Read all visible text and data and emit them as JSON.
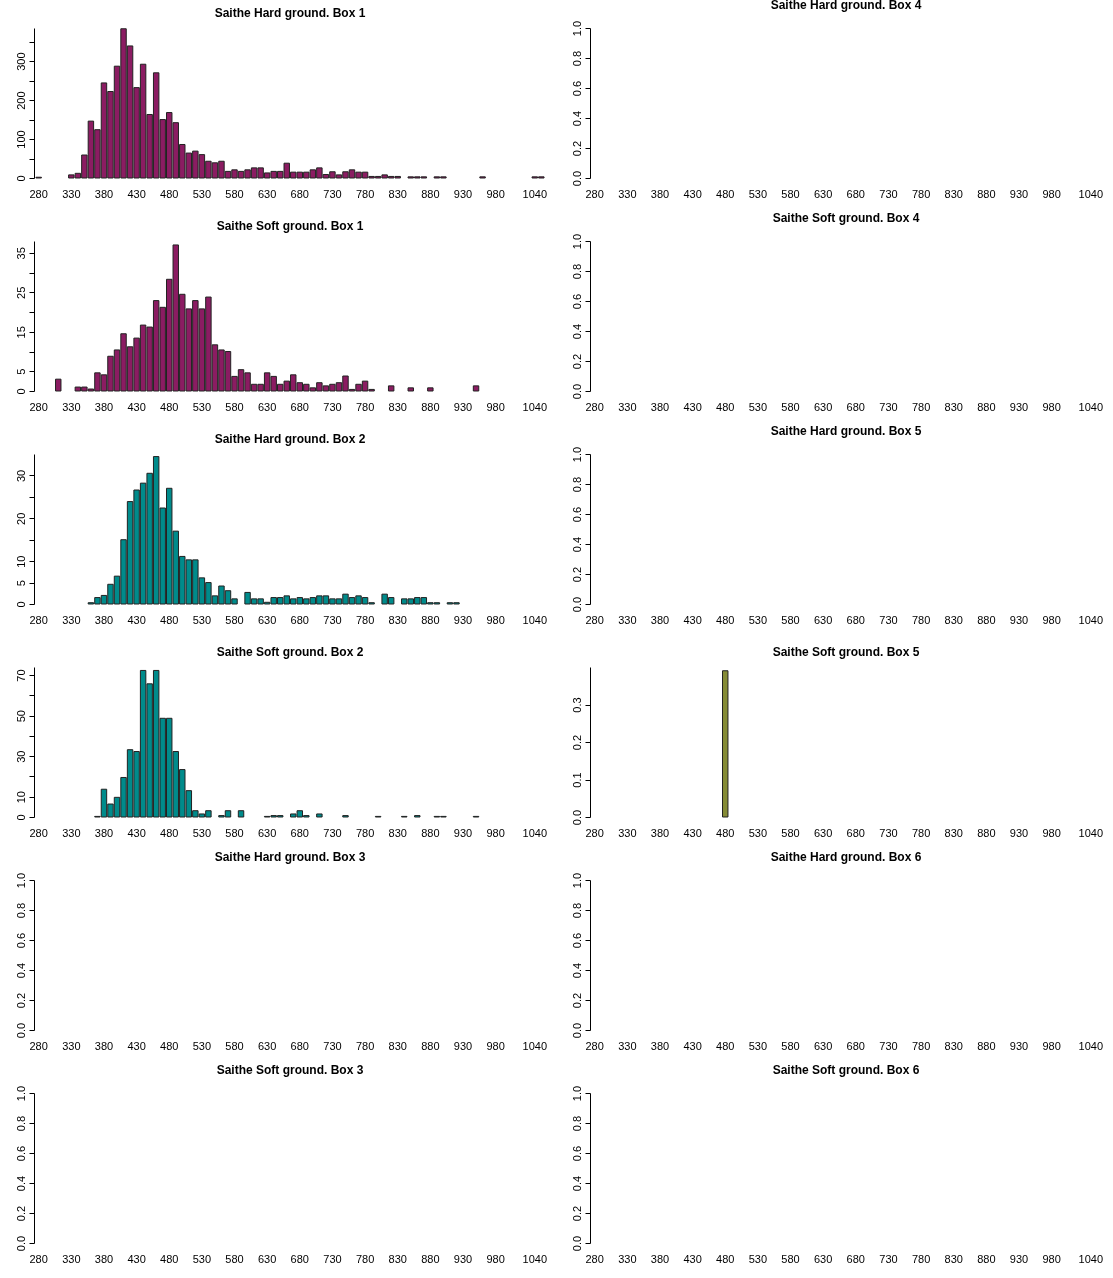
{
  "chart_data": [
    {
      "type": "bar",
      "title": "Saithe Hard ground. Box 1",
      "color": "#8b1c62",
      "categories": [
        "280",
        null,
        null,
        null,
        null,
        "330",
        null,
        null,
        null,
        null,
        "380",
        null,
        null,
        null,
        null,
        "430",
        null,
        null,
        null,
        null,
        "480",
        null,
        null,
        null,
        null,
        "530",
        null,
        null,
        null,
        null,
        "580",
        null,
        null,
        null,
        null,
        "630",
        null,
        null,
        null,
        null,
        "680",
        null,
        null,
        null,
        null,
        "730",
        null,
        null,
        null,
        null,
        "780",
        null,
        null,
        null,
        null,
        "830",
        null,
        null,
        null,
        null,
        "880",
        null,
        null,
        null,
        null,
        "930",
        null,
        null,
        null,
        null,
        "980",
        null,
        null,
        null,
        null,
        null,
        "1040",
        null
      ],
      "values": [
        2,
        null,
        null,
        null,
        null,
        8,
        12,
        59,
        146,
        124,
        244,
        222,
        287,
        383,
        339,
        232,
        292,
        163,
        270,
        150,
        168,
        142,
        86,
        64,
        69,
        60,
        43,
        39,
        43,
        17,
        21,
        17,
        21,
        26,
        26,
        13,
        17,
        17,
        38,
        15,
        15,
        15,
        21,
        26,
        9,
        16,
        8,
        16,
        21,
        15,
        15,
        4,
        4,
        8,
        4,
        4,
        null,
        3,
        3,
        3,
        null,
        3,
        3,
        null,
        null,
        null,
        null,
        null,
        3,
        null,
        null,
        null,
        null,
        null,
        null,
        null,
        3,
        3
      ],
      "ylim": [
        0,
        385
      ],
      "yticks": [
        0,
        {
          "value": 50,
          "label": null
        },
        100,
        {
          "value": 150,
          "label": null
        },
        200,
        {
          "value": 250,
          "label": null
        },
        300,
        {
          "value": 350,
          "label": null
        }
      ]
    },
    {
      "type": "bar",
      "title": "Saithe Hard ground. Box 4",
      "categories": [
        "280",
        null,
        null,
        null,
        null,
        "330",
        null,
        null,
        null,
        null,
        "380",
        null,
        null,
        null,
        null,
        "430",
        null,
        null,
        null,
        null,
        "480",
        null,
        null,
        null,
        null,
        "530",
        null,
        null,
        null,
        null,
        "580",
        null,
        null,
        null,
        null,
        "630",
        null,
        null,
        null,
        null,
        "680",
        null,
        null,
        null,
        null,
        "730",
        null,
        null,
        null,
        null,
        "780",
        null,
        null,
        null,
        null,
        "830",
        null,
        null,
        null,
        null,
        "880",
        null,
        null,
        null,
        null,
        "930",
        null,
        null,
        null,
        null,
        "980",
        null,
        null,
        null,
        null,
        null,
        "1040",
        null
      ],
      "values": [
        null,
        null,
        null,
        null,
        null,
        null,
        null,
        null,
        null,
        null,
        null,
        null,
        null,
        null,
        null,
        null,
        null,
        null,
        null,
        null,
        null,
        null,
        null,
        null,
        null,
        null,
        null,
        null,
        null,
        null,
        null,
        null,
        null,
        null,
        null,
        null,
        null,
        null,
        null,
        null,
        null,
        null,
        null,
        null,
        null,
        null,
        null,
        null,
        null,
        null,
        null,
        null,
        null,
        null,
        null,
        null,
        null,
        null,
        null,
        null,
        null,
        null,
        null,
        null,
        null,
        null,
        null,
        null,
        null,
        null,
        null,
        null,
        null,
        null,
        null,
        null,
        null,
        null
      ],
      "ylim": [
        0,
        1
      ],
      "yticks": [
        {
          "value": 0,
          "label": "0.0"
        },
        0.2,
        0.4,
        0.6,
        0.8,
        {
          "value": 1,
          "label": "1.0"
        }
      ]
    },
    {
      "type": "bar",
      "title": "Saithe Soft ground. Box 1",
      "color": "#8b1c62",
      "categories": [
        "280",
        null,
        null,
        null,
        null,
        "330",
        null,
        null,
        null,
        null,
        "380",
        null,
        null,
        null,
        null,
        "430",
        null,
        null,
        null,
        null,
        "480",
        null,
        null,
        null,
        null,
        "530",
        null,
        null,
        null,
        null,
        "580",
        null,
        null,
        null,
        null,
        "630",
        null,
        null,
        null,
        null,
        "680",
        null,
        null,
        null,
        null,
        "730",
        null,
        null,
        null,
        null,
        "780",
        null,
        null,
        null,
        null,
        "830",
        null,
        null,
        null,
        null,
        "880",
        null,
        null,
        null,
        null,
        "930",
        null,
        null,
        null,
        null,
        "980",
        null,
        null,
        null,
        null,
        null,
        "1040",
        null
      ],
      "values": [
        null,
        null,
        null,
        3,
        null,
        null,
        1,
        1,
        0.5,
        4.6,
        4.1,
        8.8,
        10.4,
        14.5,
        11.2,
        13.4,
        16.7,
        16.2,
        22.9,
        21.2,
        28.3,
        37,
        24.5,
        20.8,
        22.9,
        20.8,
        23.8,
        11.7,
        10.4,
        10,
        3.7,
        5.4,
        4.6,
        1.7,
        1.7,
        4.6,
        3.7,
        1.7,
        2.5,
        4.1,
        2.1,
        1.7,
        0.8,
        2.1,
        1.3,
        1.7,
        2.1,
        3.8,
        0.4,
        1.7,
        2.5,
        0.4,
        null,
        null,
        1.3,
        null,
        null,
        0.8,
        null,
        null,
        0.8,
        null,
        null,
        null,
        null,
        null,
        null,
        1.3,
        null,
        null,
        null,
        null,
        null,
        null,
        null,
        null,
        null,
        null
      ],
      "ylim": [
        0,
        38
      ],
      "yticks": [
        0,
        5,
        {
          "value": 10,
          "label": null
        },
        15,
        {
          "value": 20,
          "label": null
        },
        25,
        {
          "value": 30,
          "label": null
        },
        35
      ]
    },
    {
      "type": "bar",
      "title": "Saithe Soft ground. Box 4",
      "categories": [
        "280",
        null,
        null,
        null,
        null,
        "330",
        null,
        null,
        null,
        null,
        "380",
        null,
        null,
        null,
        null,
        "430",
        null,
        null,
        null,
        null,
        "480",
        null,
        null,
        null,
        null,
        "530",
        null,
        null,
        null,
        null,
        "580",
        null,
        null,
        null,
        null,
        "630",
        null,
        null,
        null,
        null,
        "680",
        null,
        null,
        null,
        null,
        "730",
        null,
        null,
        null,
        null,
        "780",
        null,
        null,
        null,
        null,
        "830",
        null,
        null,
        null,
        null,
        "880",
        null,
        null,
        null,
        null,
        "930",
        null,
        null,
        null,
        null,
        "980",
        null,
        null,
        null,
        null,
        null,
        "1040",
        null
      ],
      "values": [
        null,
        null,
        null,
        null,
        null,
        null,
        null,
        null,
        null,
        null,
        null,
        null,
        null,
        null,
        null,
        null,
        null,
        null,
        null,
        null,
        null,
        null,
        null,
        null,
        null,
        null,
        null,
        null,
        null,
        null,
        null,
        null,
        null,
        null,
        null,
        null,
        null,
        null,
        null,
        null,
        null,
        null,
        null,
        null,
        null,
        null,
        null,
        null,
        null,
        null,
        null,
        null,
        null,
        null,
        null,
        null,
        null,
        null,
        null,
        null,
        null,
        null,
        null,
        null,
        null,
        null,
        null,
        null,
        null,
        null,
        null,
        null,
        null,
        null,
        null,
        null,
        null,
        null
      ],
      "ylim": [
        0,
        1
      ],
      "yticks": [
        {
          "value": 0,
          "label": "0.0"
        },
        0.2,
        0.4,
        0.6,
        0.8,
        {
          "value": 1,
          "label": "1.0"
        }
      ]
    },
    {
      "type": "bar",
      "title": "Saithe Hard ground. Box 2",
      "color": "#008b8b",
      "categories": [
        "280",
        null,
        null,
        null,
        null,
        "330",
        null,
        null,
        null,
        null,
        "380",
        null,
        null,
        null,
        null,
        "430",
        null,
        null,
        null,
        null,
        "480",
        null,
        null,
        null,
        null,
        "530",
        null,
        null,
        null,
        null,
        "580",
        null,
        null,
        null,
        null,
        "630",
        null,
        null,
        null,
        null,
        "680",
        null,
        null,
        null,
        null,
        "730",
        null,
        null,
        null,
        null,
        "780",
        null,
        null,
        null,
        null,
        "830",
        null,
        null,
        null,
        null,
        "880",
        null,
        null,
        null,
        null,
        "930",
        null,
        null,
        null,
        null,
        "980",
        null,
        null,
        null,
        null,
        null,
        "1040",
        null
      ],
      "values": [
        null,
        null,
        null,
        null,
        null,
        null,
        null,
        null,
        0.3,
        1.5,
        2,
        4.6,
        6.5,
        15,
        23.9,
        26.6,
        28.2,
        30.5,
        34.4,
        22.4,
        27,
        17,
        11.1,
        10.3,
        10.3,
        6.1,
        5,
        1.9,
        4.2,
        3.1,
        1.2,
        null,
        2.7,
        1.2,
        1.2,
        0.4,
        1.5,
        1.5,
        1.9,
        1.2,
        1.5,
        1.2,
        1.5,
        1.9,
        1.9,
        1.2,
        1.2,
        2.3,
        1.5,
        1.9,
        1.5,
        0.3,
        null,
        2.3,
        1.5,
        null,
        1.2,
        1.2,
        1.5,
        1.5,
        0.3,
        0.3,
        null,
        0.3,
        0.3,
        null,
        null,
        null,
        null,
        null,
        null,
        null,
        null,
        null,
        null,
        null,
        null,
        null
      ],
      "ylim": [
        0,
        35
      ],
      "yticks": [
        0,
        5,
        10,
        {
          "value": 15,
          "label": null
        },
        20,
        {
          "value": 25,
          "label": null
        },
        30
      ]
    },
    {
      "type": "bar",
      "title": "Saithe Hard ground. Box 5",
      "categories": [
        "280",
        null,
        null,
        null,
        null,
        "330",
        null,
        null,
        null,
        null,
        "380",
        null,
        null,
        null,
        null,
        "430",
        null,
        null,
        null,
        null,
        "480",
        null,
        null,
        null,
        null,
        "530",
        null,
        null,
        null,
        null,
        "580",
        null,
        null,
        null,
        null,
        "630",
        null,
        null,
        null,
        null,
        "680",
        null,
        null,
        null,
        null,
        "730",
        null,
        null,
        null,
        null,
        "780",
        null,
        null,
        null,
        null,
        "830",
        null,
        null,
        null,
        null,
        "880",
        null,
        null,
        null,
        null,
        "930",
        null,
        null,
        null,
        null,
        "980",
        null,
        null,
        null,
        null,
        null,
        "1040",
        null
      ],
      "values": [
        null,
        null,
        null,
        null,
        null,
        null,
        null,
        null,
        null,
        null,
        null,
        null,
        null,
        null,
        null,
        null,
        null,
        null,
        null,
        null,
        null,
        null,
        null,
        null,
        null,
        null,
        null,
        null,
        null,
        null,
        null,
        null,
        null,
        null,
        null,
        null,
        null,
        null,
        null,
        null,
        null,
        null,
        null,
        null,
        null,
        null,
        null,
        null,
        null,
        null,
        null,
        null,
        null,
        null,
        null,
        null,
        null,
        null,
        null,
        null,
        null,
        null,
        null,
        null,
        null,
        null,
        null,
        null,
        null,
        null,
        null,
        null,
        null,
        null,
        null,
        null,
        null,
        null
      ],
      "ylim": [
        0,
        1
      ],
      "yticks": [
        {
          "value": 0,
          "label": "0.0"
        },
        0.2,
        0.4,
        0.6,
        0.8,
        {
          "value": 1,
          "label": "1.0"
        }
      ]
    },
    {
      "type": "bar",
      "title": "Saithe Soft ground. Box 2",
      "color": "#008b8b",
      "categories": [
        "280",
        null,
        null,
        null,
        null,
        "330",
        null,
        null,
        null,
        null,
        "380",
        null,
        null,
        null,
        null,
        "430",
        null,
        null,
        null,
        null,
        "480",
        null,
        null,
        null,
        null,
        "530",
        null,
        null,
        null,
        null,
        "580",
        null,
        null,
        null,
        null,
        "630",
        null,
        null,
        null,
        null,
        "680",
        null,
        null,
        null,
        null,
        "730",
        null,
        null,
        null,
        null,
        "780",
        null,
        null,
        null,
        null,
        "830",
        null,
        null,
        null,
        null,
        "880",
        null,
        null,
        null,
        null,
        "930",
        null,
        null,
        null,
        null,
        "980",
        null,
        null,
        null,
        null,
        null,
        "1040",
        null
      ],
      "values": [
        null,
        null,
        null,
        null,
        null,
        null,
        null,
        null,
        null,
        0.3,
        13.7,
        6.4,
        9.7,
        19.5,
        33.2,
        32.3,
        72.3,
        65.7,
        72.3,
        48.7,
        48.7,
        32.3,
        23.4,
        13,
        3.1,
        1.5,
        3.1,
        null,
        0.7,
        3.1,
        null,
        3.1,
        null,
        null,
        null,
        0.3,
        0.7,
        0.7,
        null,
        1.5,
        3.1,
        0.7,
        null,
        1.5,
        null,
        null,
        null,
        0.7,
        null,
        null,
        null,
        null,
        0.3,
        null,
        null,
        null,
        0.3,
        null,
        0.7,
        null,
        null,
        0.3,
        0.3,
        null,
        null,
        null,
        null,
        0.3,
        null,
        null,
        null,
        null,
        null,
        null,
        null,
        null,
        null,
        null
      ],
      "ylim": [
        0,
        74
      ],
      "yticks": [
        0,
        10,
        {
          "value": 20,
          "label": null
        },
        30,
        {
          "value": 40,
          "label": null
        },
        50,
        {
          "value": 60,
          "label": null
        },
        70
      ]
    },
    {
      "type": "bar",
      "title": "Saithe Soft ground. Box 5",
      "color": "#858b35",
      "categories": [
        "280",
        null,
        null,
        null,
        null,
        "330",
        null,
        null,
        null,
        null,
        "380",
        null,
        null,
        null,
        null,
        "430",
        null,
        null,
        null,
        null,
        "480",
        null,
        null,
        null,
        null,
        "530",
        null,
        null,
        null,
        null,
        "580",
        null,
        null,
        null,
        null,
        "630",
        null,
        null,
        null,
        null,
        "680",
        null,
        null,
        null,
        null,
        "730",
        null,
        null,
        null,
        null,
        "780",
        null,
        null,
        null,
        null,
        "830",
        null,
        null,
        null,
        null,
        "880",
        null,
        null,
        null,
        null,
        "930",
        null,
        null,
        null,
        null,
        "980",
        null,
        null,
        null,
        null,
        null,
        "1040",
        null
      ],
      "values": [
        null,
        null,
        null,
        null,
        null,
        null,
        null,
        null,
        null,
        null,
        null,
        null,
        null,
        null,
        null,
        null,
        null,
        null,
        null,
        null,
        0.39,
        null,
        null,
        null,
        null,
        null,
        null,
        null,
        null,
        null,
        null,
        null,
        null,
        null,
        null,
        null,
        null,
        null,
        null,
        null,
        null,
        null,
        null,
        null,
        null,
        null,
        null,
        null,
        null,
        null,
        null,
        null,
        null,
        null,
        null,
        null,
        null,
        null,
        null,
        null,
        null,
        null,
        null,
        null,
        null,
        null,
        null,
        null,
        null,
        null,
        null,
        null,
        null,
        null,
        null,
        null,
        null,
        null
      ],
      "ylim": [
        0,
        0.4
      ],
      "yticks": [
        {
          "value": 0,
          "label": "0.0"
        },
        0.1,
        0.2,
        0.3
      ]
    },
    {
      "type": "bar",
      "title": "Saithe Hard ground. Box 3",
      "categories": [
        "280",
        null,
        null,
        null,
        null,
        "330",
        null,
        null,
        null,
        null,
        "380",
        null,
        null,
        null,
        null,
        "430",
        null,
        null,
        null,
        null,
        "480",
        null,
        null,
        null,
        null,
        "530",
        null,
        null,
        null,
        null,
        "580",
        null,
        null,
        null,
        null,
        "630",
        null,
        null,
        null,
        null,
        "680",
        null,
        null,
        null,
        null,
        "730",
        null,
        null,
        null,
        null,
        "780",
        null,
        null,
        null,
        null,
        "830",
        null,
        null,
        null,
        null,
        "880",
        null,
        null,
        null,
        null,
        "930",
        null,
        null,
        null,
        null,
        "980",
        null,
        null,
        null,
        null,
        null,
        "1040",
        null
      ],
      "values": [
        null,
        null,
        null,
        null,
        null,
        null,
        null,
        null,
        null,
        null,
        null,
        null,
        null,
        null,
        null,
        null,
        null,
        null,
        null,
        null,
        null,
        null,
        null,
        null,
        null,
        null,
        null,
        null,
        null,
        null,
        null,
        null,
        null,
        null,
        null,
        null,
        null,
        null,
        null,
        null,
        null,
        null,
        null,
        null,
        null,
        null,
        null,
        null,
        null,
        null,
        null,
        null,
        null,
        null,
        null,
        null,
        null,
        null,
        null,
        null,
        null,
        null,
        null,
        null,
        null,
        null,
        null,
        null,
        null,
        null,
        null,
        null,
        null,
        null,
        null,
        null,
        null,
        null
      ],
      "ylim": [
        0,
        1
      ],
      "yticks": [
        {
          "value": 0,
          "label": "0.0"
        },
        0.2,
        0.4,
        0.6,
        0.8,
        {
          "value": 1,
          "label": "1.0"
        }
      ]
    },
    {
      "type": "bar",
      "title": "Saithe Hard ground. Box 6",
      "categories": [
        "280",
        null,
        null,
        null,
        null,
        "330",
        null,
        null,
        null,
        null,
        "380",
        null,
        null,
        null,
        null,
        "430",
        null,
        null,
        null,
        null,
        "480",
        null,
        null,
        null,
        null,
        "530",
        null,
        null,
        null,
        null,
        "580",
        null,
        null,
        null,
        null,
        "630",
        null,
        null,
        null,
        null,
        "680",
        null,
        null,
        null,
        null,
        "730",
        null,
        null,
        null,
        null,
        "780",
        null,
        null,
        null,
        null,
        "830",
        null,
        null,
        null,
        null,
        "880",
        null,
        null,
        null,
        null,
        "930",
        null,
        null,
        null,
        null,
        "980",
        null,
        null,
        null,
        null,
        null,
        "1040",
        null
      ],
      "values": [
        null,
        null,
        null,
        null,
        null,
        null,
        null,
        null,
        null,
        null,
        null,
        null,
        null,
        null,
        null,
        null,
        null,
        null,
        null,
        null,
        null,
        null,
        null,
        null,
        null,
        null,
        null,
        null,
        null,
        null,
        null,
        null,
        null,
        null,
        null,
        null,
        null,
        null,
        null,
        null,
        null,
        null,
        null,
        null,
        null,
        null,
        null,
        null,
        null,
        null,
        null,
        null,
        null,
        null,
        null,
        null,
        null,
        null,
        null,
        null,
        null,
        null,
        null,
        null,
        null,
        null,
        null,
        null,
        null,
        null,
        null,
        null,
        null,
        null,
        null,
        null,
        null,
        null
      ],
      "ylim": [
        0,
        1
      ],
      "yticks": [
        {
          "value": 0,
          "label": "0.0"
        },
        0.2,
        0.4,
        0.6,
        0.8,
        {
          "value": 1,
          "label": "1.0"
        }
      ]
    },
    {
      "type": "bar",
      "title": "Saithe Soft ground. Box 3",
      "categories": [
        "280",
        null,
        null,
        null,
        null,
        "330",
        null,
        null,
        null,
        null,
        "380",
        null,
        null,
        null,
        null,
        "430",
        null,
        null,
        null,
        null,
        "480",
        null,
        null,
        null,
        null,
        "530",
        null,
        null,
        null,
        null,
        "580",
        null,
        null,
        null,
        null,
        "630",
        null,
        null,
        null,
        null,
        "680",
        null,
        null,
        null,
        null,
        "730",
        null,
        null,
        null,
        null,
        "780",
        null,
        null,
        null,
        null,
        "830",
        null,
        null,
        null,
        null,
        "880",
        null,
        null,
        null,
        null,
        "930",
        null,
        null,
        null,
        null,
        "980",
        null,
        null,
        null,
        null,
        null,
        "1040",
        null
      ],
      "values": [
        null,
        null,
        null,
        null,
        null,
        null,
        null,
        null,
        null,
        null,
        null,
        null,
        null,
        null,
        null,
        null,
        null,
        null,
        null,
        null,
        null,
        null,
        null,
        null,
        null,
        null,
        null,
        null,
        null,
        null,
        null,
        null,
        null,
        null,
        null,
        null,
        null,
        null,
        null,
        null,
        null,
        null,
        null,
        null,
        null,
        null,
        null,
        null,
        null,
        null,
        null,
        null,
        null,
        null,
        null,
        null,
        null,
        null,
        null,
        null,
        null,
        null,
        null,
        null,
        null,
        null,
        null,
        null,
        null,
        null,
        null,
        null,
        null,
        null,
        null,
        null,
        null,
        null
      ],
      "ylim": [
        0,
        1
      ],
      "yticks": [
        {
          "value": 0,
          "label": "0.0"
        },
        0.2,
        0.4,
        0.6,
        0.8,
        {
          "value": 1,
          "label": "1.0"
        }
      ]
    },
    {
      "type": "bar",
      "title": "Saithe Soft ground. Box 6",
      "categories": [
        "280",
        null,
        null,
        null,
        null,
        "330",
        null,
        null,
        null,
        null,
        "380",
        null,
        null,
        null,
        null,
        "430",
        null,
        null,
        null,
        null,
        "480",
        null,
        null,
        null,
        null,
        "530",
        null,
        null,
        null,
        null,
        "580",
        null,
        null,
        null,
        null,
        "630",
        null,
        null,
        null,
        null,
        "680",
        null,
        null,
        null,
        null,
        "730",
        null,
        null,
        null,
        null,
        "780",
        null,
        null,
        null,
        null,
        "830",
        null,
        null,
        null,
        null,
        "880",
        null,
        null,
        null,
        null,
        "930",
        null,
        null,
        null,
        null,
        "980",
        null,
        null,
        null,
        null,
        null,
        "1040",
        null
      ],
      "values": [
        null,
        null,
        null,
        null,
        null,
        null,
        null,
        null,
        null,
        null,
        null,
        null,
        null,
        null,
        null,
        null,
        null,
        null,
        null,
        null,
        null,
        null,
        null,
        null,
        null,
        null,
        null,
        null,
        null,
        null,
        null,
        null,
        null,
        null,
        null,
        null,
        null,
        null,
        null,
        null,
        null,
        null,
        null,
        null,
        null,
        null,
        null,
        null,
        null,
        null,
        null,
        null,
        null,
        null,
        null,
        null,
        null,
        null,
        null,
        null,
        null,
        null,
        null,
        null,
        null,
        null,
        null,
        null,
        null,
        null,
        null,
        null,
        null,
        null,
        null,
        null,
        null,
        null
      ],
      "ylim": [
        0,
        1
      ],
      "yticks": [
        {
          "value": 0,
          "label": "0.0"
        },
        0.2,
        0.4,
        0.6,
        0.8,
        {
          "value": 1,
          "label": "1.0"
        }
      ]
    }
  ]
}
